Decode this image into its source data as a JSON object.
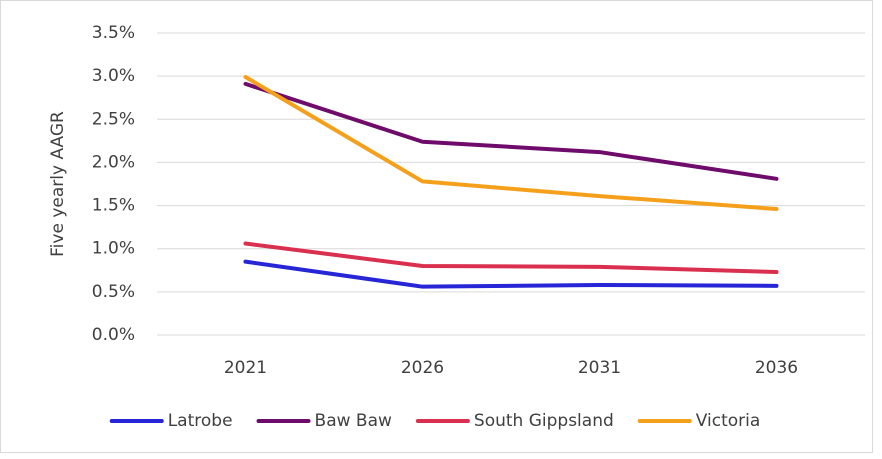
{
  "chart_data": {
    "type": "line",
    "y_label": "Five yearly AAGR",
    "categories": [
      "2021",
      "2026",
      "2031",
      "2036"
    ],
    "series": [
      {
        "name": "Latrobe",
        "color": "#2626d6",
        "values": [
          0.85,
          0.56,
          0.58,
          0.57
        ]
      },
      {
        "name": "Baw Baw",
        "color": "#6e0b6b",
        "values": [
          2.91,
          2.24,
          2.12,
          1.81
        ]
      },
      {
        "name": "South Gippsland",
        "color": "#d9304f",
        "values": [
          1.06,
          0.8,
          0.79,
          0.73
        ]
      },
      {
        "name": "Victoria",
        "color": "#f5a01a",
        "values": [
          2.99,
          1.78,
          1.61,
          1.46
        ]
      }
    ],
    "ylim": [
      0,
      3.5
    ],
    "yticks": [
      {
        "value": 0,
        "label": "0.0%"
      },
      {
        "value": 0.5,
        "label": "0.5%"
      },
      {
        "value": 1,
        "label": "1.0%"
      },
      {
        "value": 1.5,
        "label": "1.5%"
      },
      {
        "value": 2,
        "label": "2.0%"
      },
      {
        "value": 2.5,
        "label": "2.5%"
      },
      {
        "value": 3,
        "label": "3.0%"
      },
      {
        "value": 3.5,
        "label": "3.5%"
      }
    ],
    "grid": true,
    "legend": "bottom"
  }
}
